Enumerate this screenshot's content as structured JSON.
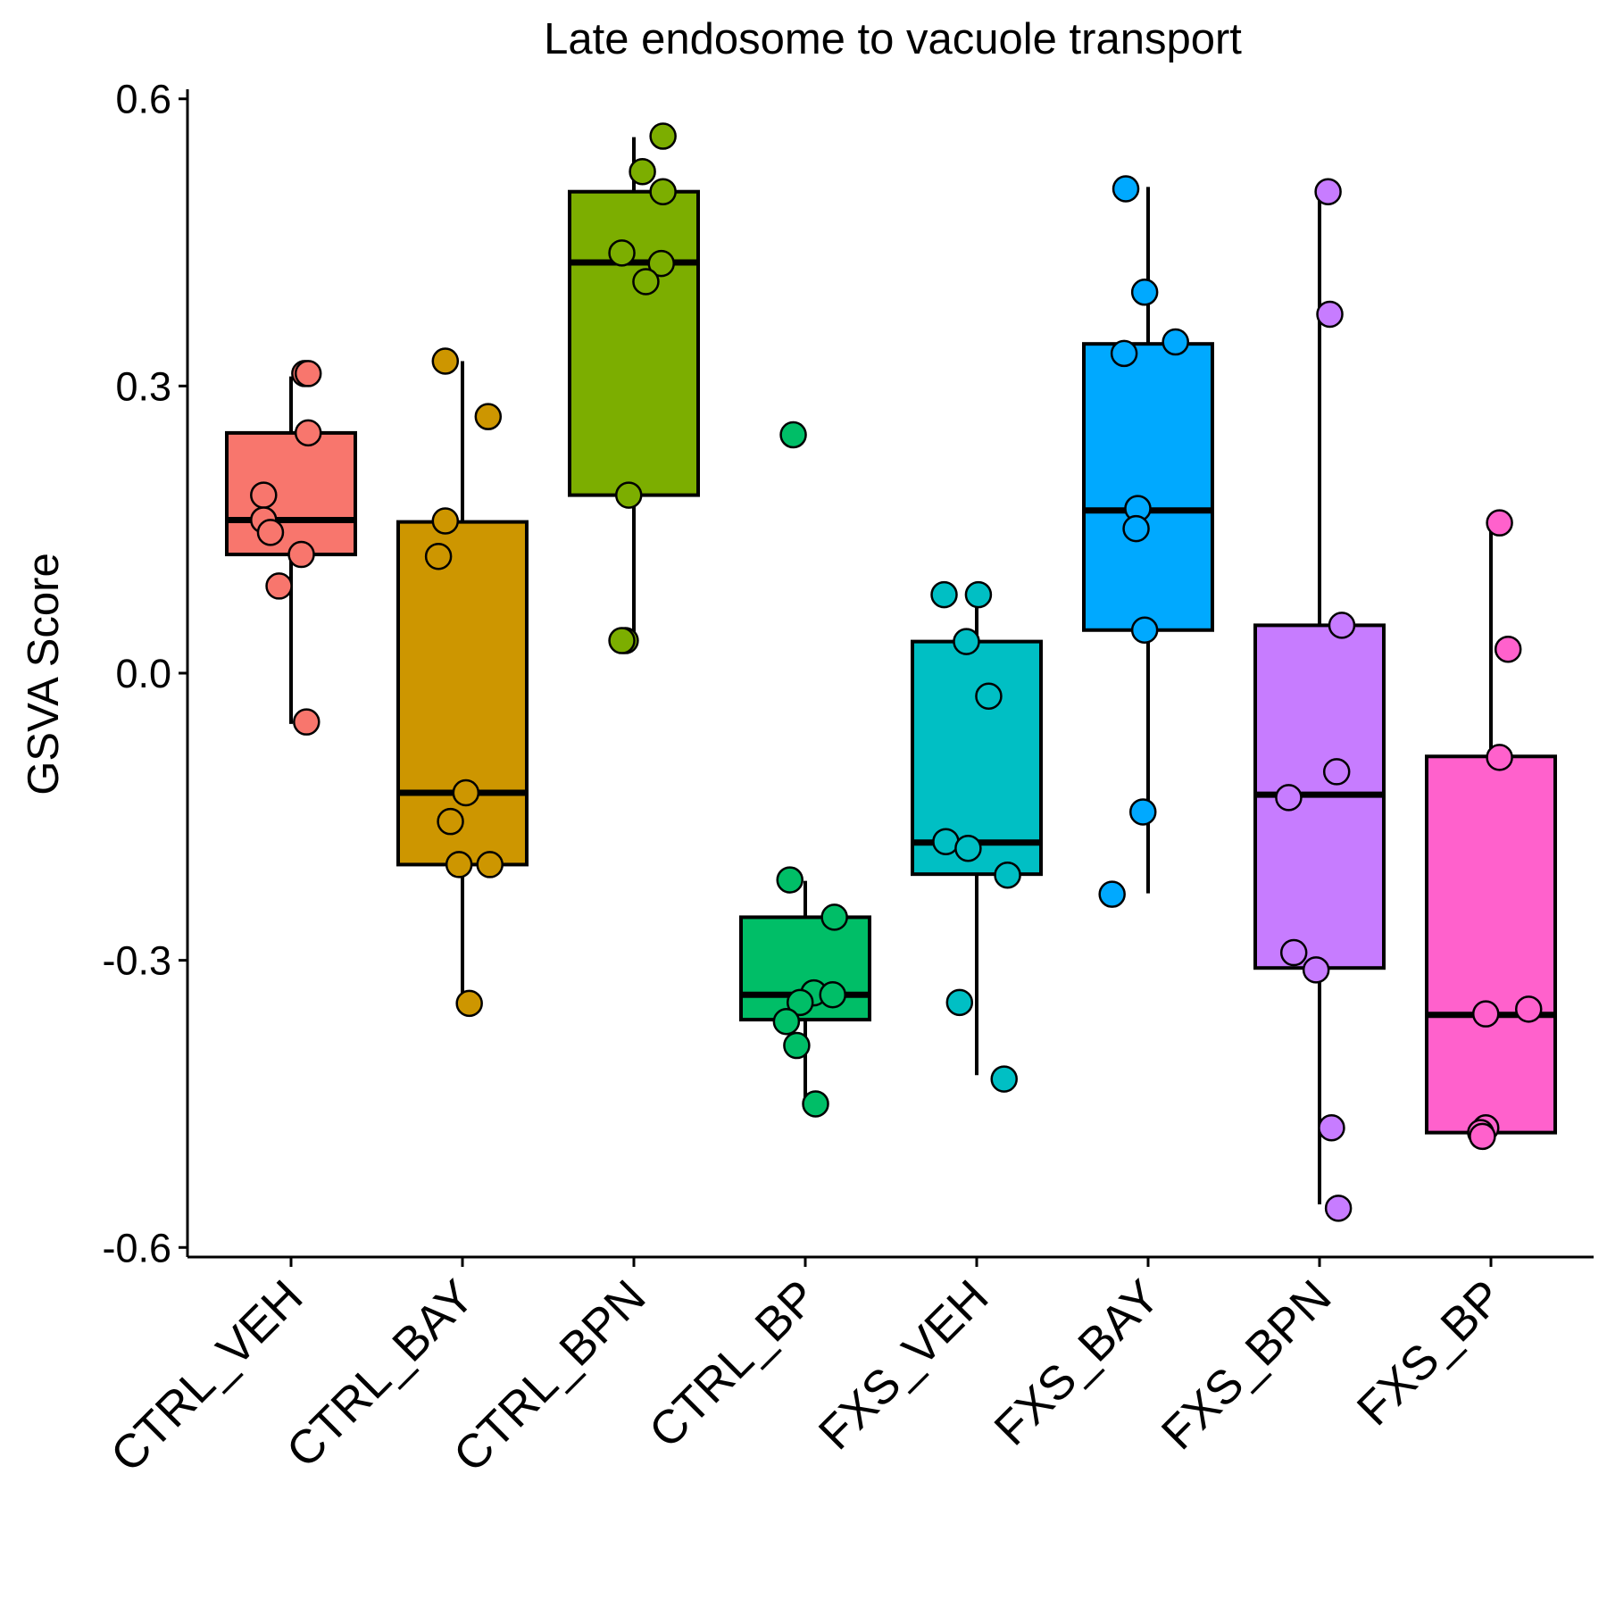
{
  "chart_data": {
    "type": "box",
    "title": "Late endosome to vacuole transport",
    "xlabel": "",
    "ylabel": "GSVA Score",
    "ylim": [
      -0.61,
      0.61
    ],
    "yticks": [
      "0.6",
      "0.3",
      "0.0",
      "-0.3",
      "-0.6"
    ],
    "ytick_values": [
      0.6,
      0.3,
      0.0,
      -0.3,
      -0.6
    ],
    "grid": false,
    "legend": "none",
    "categories": [
      "CTRL_VEH",
      "CTRL_BAY",
      "CTRL_BPN",
      "CTRL_BP",
      "FXS_VEH",
      "FXS_BAY",
      "FXS_BPN",
      "FXS_BP"
    ],
    "colors": [
      "#F8766D",
      "#CD9600",
      "#7CAE00",
      "#00BE67",
      "#00BFC4",
      "#00A9FF",
      "#C77CFF",
      "#FF61CC"
    ],
    "boxes": [
      {
        "q1": 0.124,
        "median": 0.16,
        "q3": 0.251,
        "whisker_low": -0.053,
        "whisker_high": 0.31
      },
      {
        "q1": -0.2,
        "median": -0.125,
        "q3": 0.158,
        "whisker_low": -0.345,
        "whisker_high": 0.326
      },
      {
        "q1": 0.186,
        "median": 0.429,
        "q3": 0.503,
        "whisker_low": 0.035,
        "whisker_high": 0.56
      },
      {
        "q1": -0.362,
        "median": -0.336,
        "q3": -0.255,
        "whisker_low": -0.45,
        "whisker_high": -0.217
      },
      {
        "q1": -0.21,
        "median": -0.177,
        "q3": 0.033,
        "whisker_low": -0.42,
        "whisker_high": 0.082
      },
      {
        "q1": 0.045,
        "median": 0.17,
        "q3": 0.344,
        "whisker_low": -0.23,
        "whisker_high": 0.508
      },
      {
        "q1": -0.308,
        "median": -0.127,
        "q3": 0.05,
        "whisker_low": -0.555,
        "whisker_high": 0.502
      },
      {
        "q1": -0.48,
        "median": -0.357,
        "q3": -0.087,
        "whisker_low": -0.487,
        "whisker_high": 0.157
      }
    ],
    "points": [
      [
        {
          "x": 0.08,
          "y": 0.313
        },
        {
          "x": 0.1,
          "y": 0.313
        },
        {
          "x": 0.1,
          "y": 0.251
        },
        {
          "x": -0.16,
          "y": 0.186
        },
        {
          "x": -0.16,
          "y": 0.16
        },
        {
          "x": -0.12,
          "y": 0.147
        },
        {
          "x": 0.06,
          "y": 0.124
        },
        {
          "x": -0.07,
          "y": 0.091
        },
        {
          "x": 0.09,
          "y": -0.051
        }
      ],
      [
        {
          "x": -0.1,
          "y": 0.326
        },
        {
          "x": 0.15,
          "y": 0.268
        },
        {
          "x": -0.1,
          "y": 0.159
        },
        {
          "x": -0.14,
          "y": 0.122
        },
        {
          "x": 0.02,
          "y": -0.125
        },
        {
          "x": -0.07,
          "y": -0.155
        },
        {
          "x": -0.02,
          "y": -0.2
        },
        {
          "x": 0.16,
          "y": -0.2
        },
        {
          "x": 0.04,
          "y": -0.345
        }
      ],
      [
        {
          "x": 0.17,
          "y": 0.561
        },
        {
          "x": 0.05,
          "y": 0.524
        },
        {
          "x": 0.17,
          "y": 0.503
        },
        {
          "x": -0.07,
          "y": 0.439
        },
        {
          "x": 0.16,
          "y": 0.428
        },
        {
          "x": 0.07,
          "y": 0.409
        },
        {
          "x": -0.03,
          "y": 0.186
        },
        {
          "x": -0.05,
          "y": 0.034
        },
        {
          "x": -0.07,
          "y": 0.034
        }
      ],
      [
        {
          "x": -0.07,
          "y": 0.249
        },
        {
          "x": -0.09,
          "y": -0.216
        },
        {
          "x": 0.17,
          "y": -0.255
        },
        {
          "x": 0.05,
          "y": -0.334
        },
        {
          "x": 0.16,
          "y": -0.336
        },
        {
          "x": -0.03,
          "y": -0.344
        },
        {
          "x": -0.11,
          "y": -0.364
        },
        {
          "x": -0.05,
          "y": -0.389
        },
        {
          "x": 0.06,
          "y": -0.45
        }
      ],
      [
        {
          "x": -0.19,
          "y": 0.082
        },
        {
          "x": 0.01,
          "y": 0.082
        },
        {
          "x": -0.06,
          "y": 0.033
        },
        {
          "x": 0.07,
          "y": -0.024
        },
        {
          "x": -0.18,
          "y": -0.176
        },
        {
          "x": -0.05,
          "y": -0.183
        },
        {
          "x": 0.18,
          "y": -0.211
        },
        {
          "x": -0.1,
          "y": -0.344
        },
        {
          "x": 0.16,
          "y": -0.424
        }
      ],
      [
        {
          "x": -0.13,
          "y": 0.506
        },
        {
          "x": -0.02,
          "y": 0.398
        },
        {
          "x": 0.16,
          "y": 0.346
        },
        {
          "x": -0.14,
          "y": 0.334
        },
        {
          "x": -0.06,
          "y": 0.172
        },
        {
          "x": -0.07,
          "y": 0.151
        },
        {
          "x": -0.02,
          "y": 0.045
        },
        {
          "x": -0.03,
          "y": -0.145
        },
        {
          "x": -0.21,
          "y": -0.231
        }
      ],
      [
        {
          "x": 0.05,
          "y": 0.503
        },
        {
          "x": 0.06,
          "y": 0.375
        },
        {
          "x": 0.13,
          "y": 0.05
        },
        {
          "x": 0.1,
          "y": -0.103
        },
        {
          "x": -0.18,
          "y": -0.13
        },
        {
          "x": -0.15,
          "y": -0.292
        },
        {
          "x": -0.02,
          "y": -0.31
        },
        {
          "x": 0.07,
          "y": -0.475
        },
        {
          "x": 0.11,
          "y": -0.559
        }
      ],
      [
        {
          "x": 0.05,
          "y": 0.157
        },
        {
          "x": 0.1,
          "y": 0.025
        },
        {
          "x": 0.05,
          "y": -0.088
        },
        {
          "x": 0.22,
          "y": -0.351
        },
        {
          "x": -0.03,
          "y": -0.356
        },
        {
          "x": -0.03,
          "y": -0.475
        },
        {
          "x": -0.06,
          "y": -0.48
        },
        {
          "x": -0.05,
          "y": -0.484
        }
      ]
    ]
  }
}
